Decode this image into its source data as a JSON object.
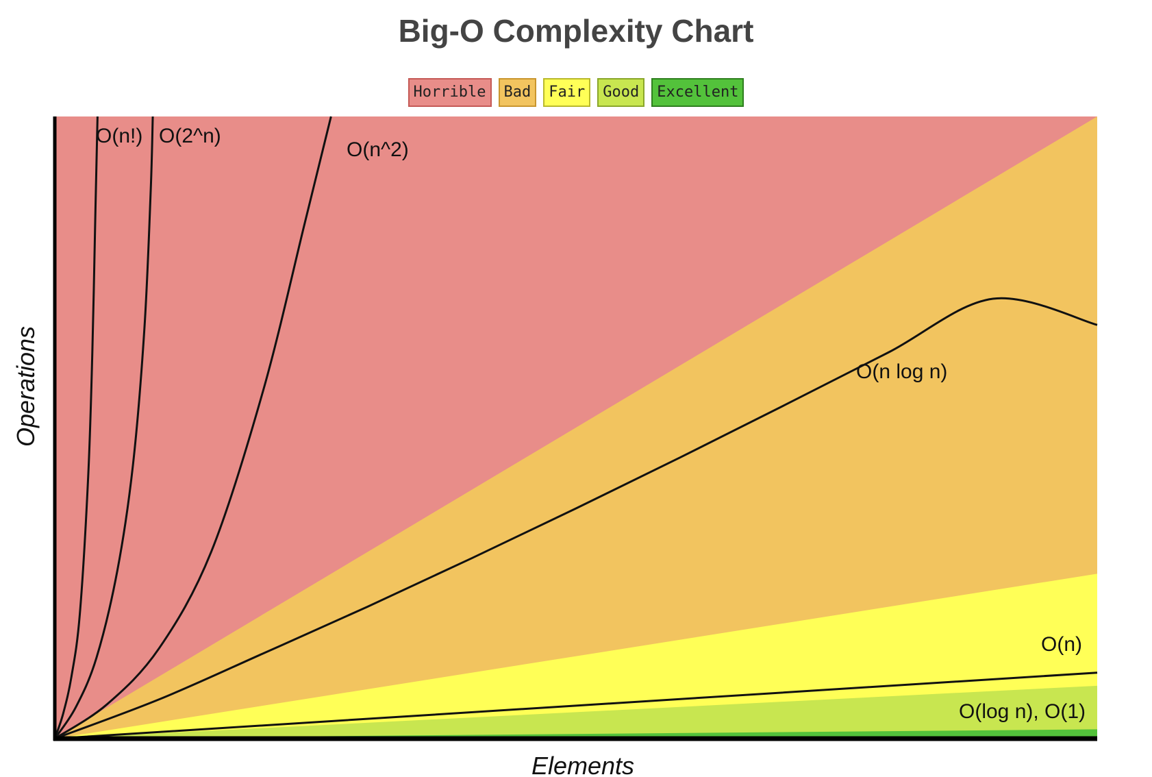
{
  "chart_data": {
    "type": "area",
    "title": "Big-O Complexity Chart",
    "xlabel": "Elements",
    "ylabel": "Operations",
    "grid": false,
    "legend_position": "top-center",
    "xlim": [
      0,
      100
    ],
    "ylim": [
      0,
      100
    ],
    "legend": [
      {
        "label": "Horrible",
        "color": "#e88d89",
        "border": "#c55a56"
      },
      {
        "label": "Bad",
        "color": "#f2c45f",
        "border": "#c9962e"
      },
      {
        "label": "Fair",
        "color": "#ffff57",
        "border": "#b9b92b"
      },
      {
        "label": "Good",
        "color": "#c8e650",
        "border": "#8aa62a"
      },
      {
        "label": "Excellent",
        "color": "#53c23b",
        "border": "#2e7f1e"
      }
    ],
    "regions": [
      {
        "name": "Horrible",
        "upper_slope": null,
        "color": "#e88d89"
      },
      {
        "name": "Bad",
        "upper_slope": 1.0,
        "color": "#f2c45f"
      },
      {
        "name": "Fair",
        "upper_slope": 0.265,
        "color": "#ffff57"
      },
      {
        "name": "Good",
        "upper_slope": 0.085,
        "color": "#c8e650"
      },
      {
        "name": "Excellent",
        "upper_slope": 0.015,
        "color": "#53c23b"
      }
    ],
    "series": [
      {
        "name": "O(n!)",
        "label": "O(n!)",
        "x": [
          0,
          0.8,
          1.6,
          2.4,
          3.2,
          3.6,
          3.9,
          4.1
        ],
        "y": [
          0,
          4,
          10,
          20,
          42,
          62,
          85,
          100
        ]
      },
      {
        "name": "O(2^n)",
        "label": "O(2^n)",
        "x": [
          0,
          2,
          4,
          6,
          7.5,
          8.6,
          9.2,
          9.4
        ],
        "y": [
          0,
          5,
          13,
          27,
          44,
          66,
          88,
          100
        ]
      },
      {
        "name": "O(n^2)",
        "label": "O(n^2)",
        "x": [
          0,
          5,
          10,
          15,
          20,
          24,
          26.5
        ],
        "y": [
          0,
          5.5,
          14.5,
          30,
          56,
          83,
          100
        ]
      },
      {
        "name": "O(n log n)",
        "label": "O(n log n)",
        "x": [
          0,
          10,
          20,
          30,
          40,
          50,
          60,
          70,
          80,
          90,
          100
        ],
        "y": [
          0,
          6.3,
          13.7,
          21.2,
          29,
          37,
          45.2,
          53.6,
          62.1,
          70.7,
          66.5
        ]
      },
      {
        "name": "O(n)",
        "label": "O(n)",
        "x": [
          0,
          100
        ],
        "y": [
          0,
          10.6
        ]
      },
      {
        "name": "O(log n), O(1)",
        "label": "O(log n), O(1)",
        "x": [
          0,
          100
        ],
        "y": [
          0,
          0
        ]
      }
    ]
  }
}
